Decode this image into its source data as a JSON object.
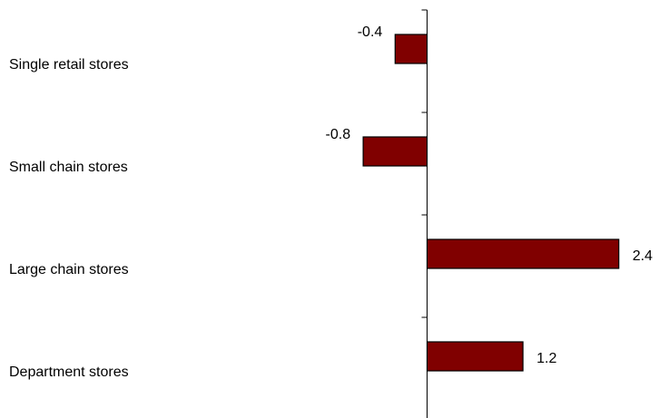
{
  "chart_data": {
    "type": "bar",
    "orientation": "horizontal",
    "categories": [
      "Single retail stores",
      "Small chain stores",
      "Large chain stores",
      "Department stores"
    ],
    "values": [
      -0.4,
      -0.8,
      2.4,
      1.2
    ],
    "value_labels": [
      "-0.4",
      "-0.8",
      "2.4",
      "1.2"
    ],
    "title": "",
    "xlabel": "",
    "ylabel": "",
    "bar_color": "#800000",
    "grid": false,
    "legend": "none"
  }
}
